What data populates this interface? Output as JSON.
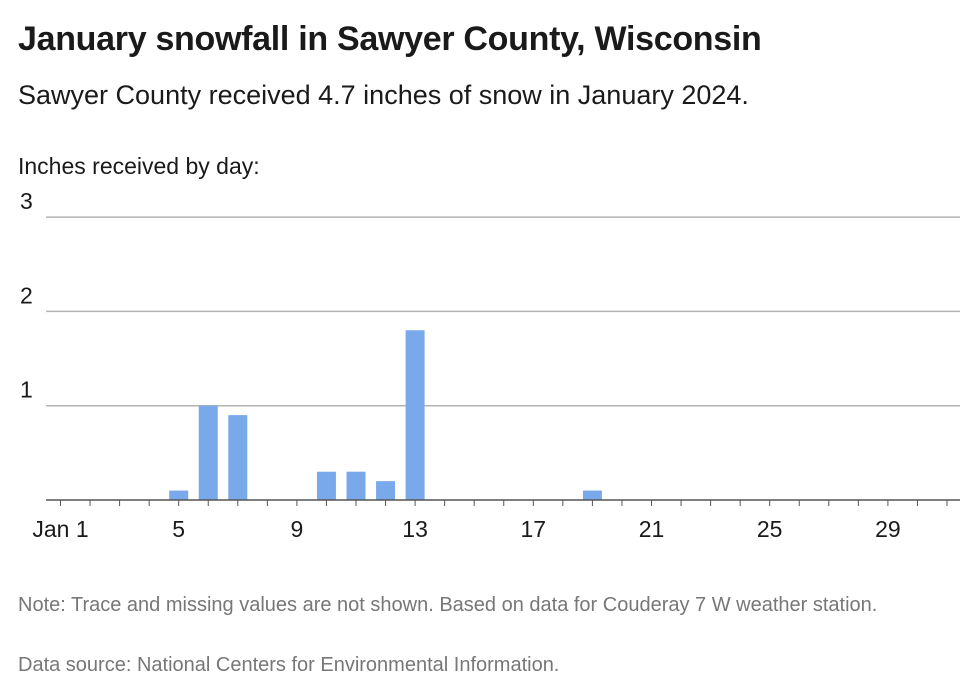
{
  "header": {
    "title": "January snowfall in Sawyer County, Wisconsin",
    "subtitle": "Sawyer County received 4.7 inches of snow in January 2024.",
    "axis_caption": "Inches received by day:"
  },
  "footer": {
    "note": "Note: Trace and missing values are not shown. Based on data for Couderay 7 W weather station.",
    "source": "Data source: National Centers for Environmental Information."
  },
  "colors": {
    "bar": "#7aa9eb",
    "grid": "#b3b3b3",
    "axis": "#555555"
  },
  "chart_data": {
    "type": "bar",
    "title": "January snowfall in Sawyer County, Wisconsin",
    "ylabel": "Inches received by day:",
    "xlabel": "",
    "x_range": [
      1,
      31
    ],
    "ylim": [
      0,
      3
    ],
    "y_ticks": [
      1,
      2,
      3
    ],
    "x_ticks": [
      {
        "day": 1,
        "label": "Jan 1"
      },
      {
        "day": 5,
        "label": "5"
      },
      {
        "day": 9,
        "label": "9"
      },
      {
        "day": 13,
        "label": "13"
      },
      {
        "day": 17,
        "label": "17"
      },
      {
        "day": 21,
        "label": "21"
      },
      {
        "day": 25,
        "label": "25"
      },
      {
        "day": 29,
        "label": "29"
      }
    ],
    "grid": true,
    "series": [
      {
        "values": [
          {
            "day": 5,
            "value": 0.1
          },
          {
            "day": 6,
            "value": 1.0
          },
          {
            "day": 7,
            "value": 0.9
          },
          {
            "day": 10,
            "value": 0.3
          },
          {
            "day": 11,
            "value": 0.3
          },
          {
            "day": 12,
            "value": 0.2
          },
          {
            "day": 13,
            "value": 1.8
          },
          {
            "day": 19,
            "value": 0.1
          }
        ]
      }
    ]
  }
}
